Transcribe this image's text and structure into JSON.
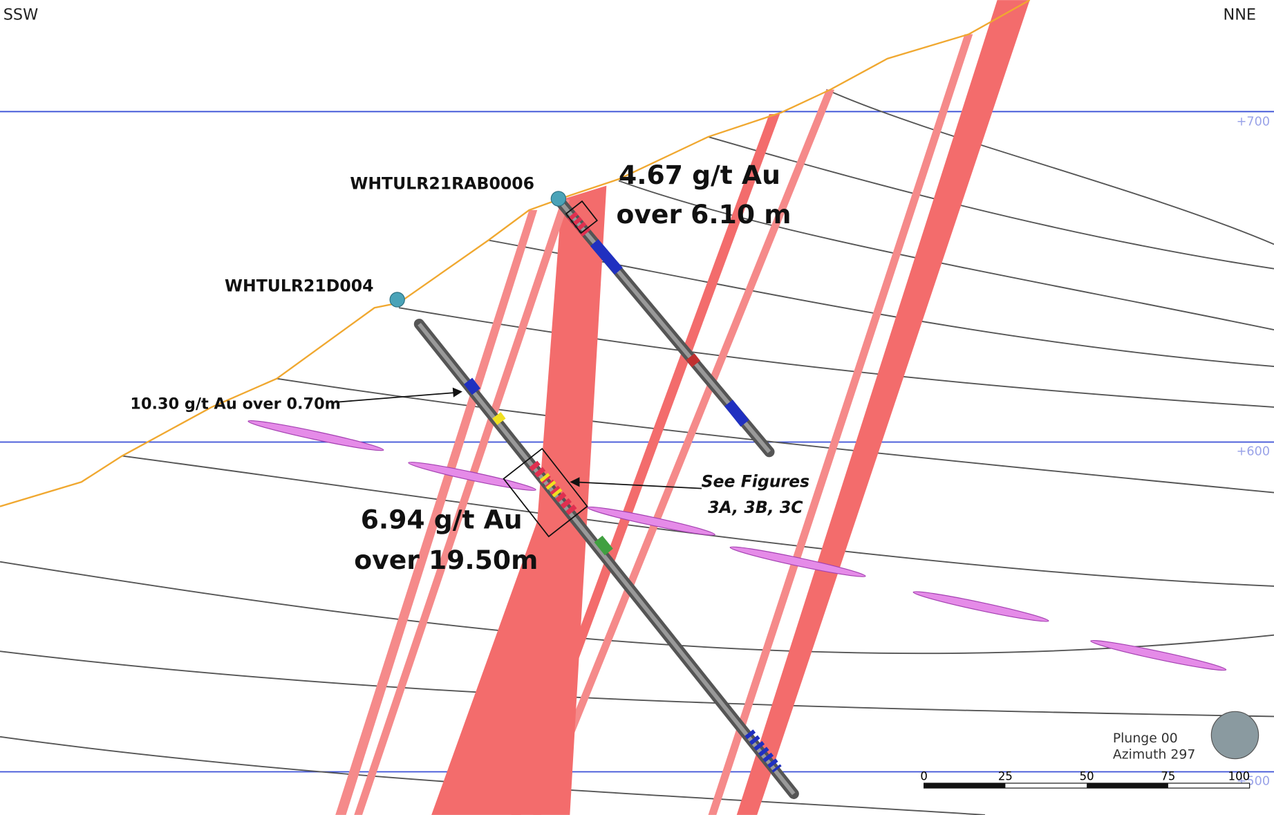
{
  "orientation": {
    "left": "SSW",
    "right": "NNE"
  },
  "elevations": [
    "+700",
    "+600",
    "+500"
  ],
  "drillholes": [
    {
      "name": "WHTULR21RAB0006"
    },
    {
      "name": "WHTULR21D004"
    }
  ],
  "annotations": {
    "rab_intercept": [
      "4.67 g/t Au",
      "over 6.10 m"
    ],
    "d004_minor": "10.30 g/t Au over 0.70m",
    "d004_intercept": [
      "6.94 g/t Au",
      "over 19.50m"
    ],
    "figures_ref": [
      "See Figures",
      "3A, 3B, 3C"
    ]
  },
  "view": {
    "plunge": "Plunge 00",
    "azimuth": "Azimuth 297"
  },
  "scale_bar": [
    "0",
    "25",
    "50",
    "75",
    "100"
  ]
}
